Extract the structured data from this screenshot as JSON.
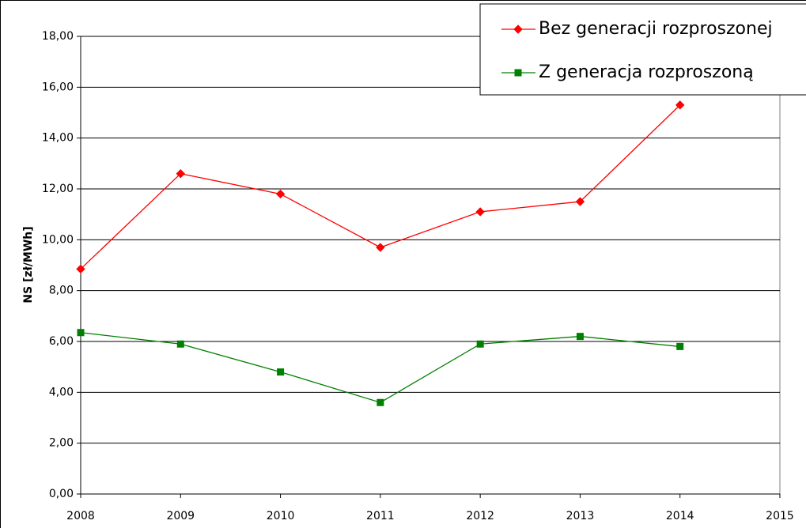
{
  "chart_data": {
    "type": "line",
    "y_label": "NS [zł/MWh]",
    "x": [
      2008,
      2009,
      2010,
      2011,
      2012,
      2013,
      2014
    ],
    "series": [
      {
        "name": "Bez generacji rozproszonej",
        "color": "#ff0000",
        "marker": "diamond",
        "values": [
          8.85,
          12.6,
          11.8,
          9.7,
          11.1,
          11.5,
          15.3
        ]
      },
      {
        "name": "Z generacja rozproszoną",
        "color": "#008000",
        "marker": "square",
        "values": [
          6.35,
          5.9,
          4.8,
          3.6,
          5.9,
          6.2,
          5.8
        ]
      }
    ],
    "xlim": [
      2008,
      2015
    ],
    "xticks": [
      2008,
      2009,
      2010,
      2011,
      2012,
      2013,
      2014,
      2015
    ],
    "ylim": [
      0,
      18
    ],
    "yticks": [
      {
        "value": 0,
        "label": "0,00"
      },
      {
        "value": 2,
        "label": "2,00"
      },
      {
        "value": 4,
        "label": "4,00"
      },
      {
        "value": 6,
        "label": "6,00"
      },
      {
        "value": 8,
        "label": "8,00"
      },
      {
        "value": 10,
        "label": "10,00"
      },
      {
        "value": 12,
        "label": "12,00"
      },
      {
        "value": 14,
        "label": "14,00"
      },
      {
        "value": 16,
        "label": "16,00"
      },
      {
        "value": 18,
        "label": "18,00"
      }
    ],
    "grid": true,
    "legend": "top-right"
  }
}
